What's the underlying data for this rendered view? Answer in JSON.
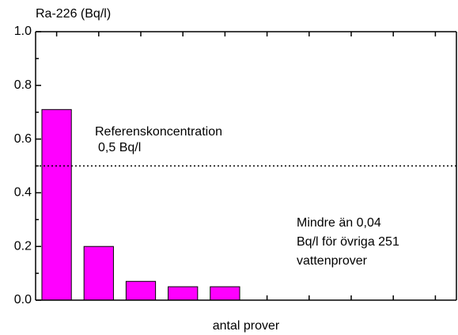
{
  "chart_data": {
    "type": "bar",
    "y_label": "Ra-226 (Bq/l)",
    "x_label": "antal prover",
    "categories": [
      null,
      null,
      null,
      null,
      null,
      null,
      null,
      null,
      null,
      null
    ],
    "values": [
      0.71,
      0.2,
      0.07,
      0.05,
      0.05,
      null,
      null,
      null,
      null,
      null
    ],
    "color": "#ff00ff",
    "ylim": [
      0,
      1
    ],
    "yticks": [
      {
        "value": 0,
        "label": "0.0"
      },
      0.2,
      0.4,
      0.6,
      0.8,
      {
        "value": 1,
        "label": "1.0"
      }
    ],
    "minor_yticks": [
      0.1,
      0.3,
      0.5,
      0.7,
      0.9
    ],
    "reference_line": {
      "value": 0.5,
      "label": [
        "Referenskoncentration",
        "0,5 Bq/l"
      ]
    },
    "annotation": [
      "Mindre än 0,04",
      "Bq/l för övriga 251",
      "vattenprover"
    ]
  }
}
